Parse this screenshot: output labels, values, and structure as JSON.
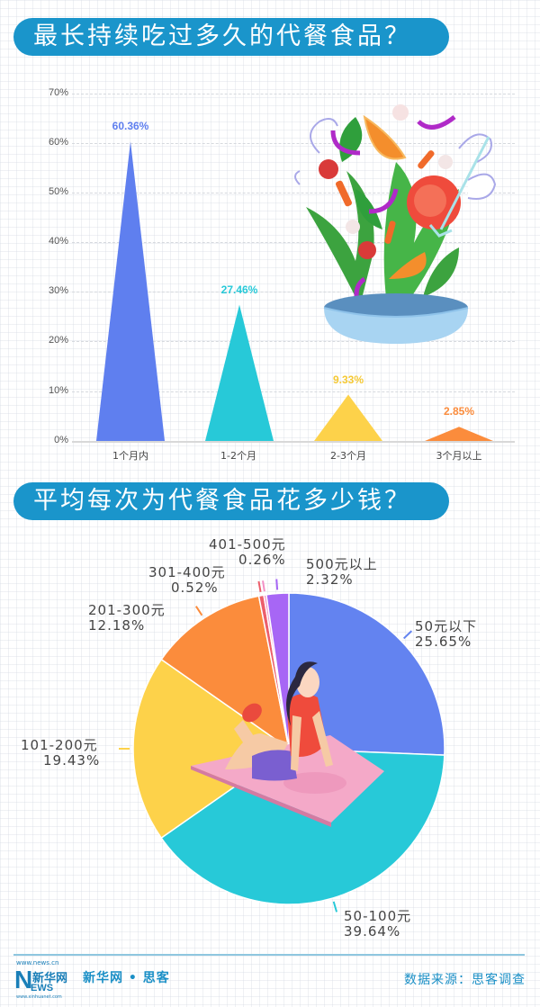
{
  "section1": {
    "title": "最长持续吃过多久的代餐食品？"
  },
  "section2": {
    "title": "平均每次为代餐食品花多少钱？"
  },
  "chart_data": [
    {
      "type": "bar",
      "shape": "triangle",
      "title": "最长持续吃过多久的代餐食品？",
      "categories": [
        "1个月内",
        "1-2个月",
        "2-3个月",
        "3个月以上"
      ],
      "values": [
        60.36,
        27.46,
        9.33,
        2.85
      ],
      "value_labels": [
        "60.36%",
        "27.46%",
        "9.33%",
        "2.85%"
      ],
      "colors": [
        "#5f7fef",
        "#27c9d8",
        "#fdd24a",
        "#fb8c3c"
      ],
      "xlabel": "",
      "ylabel": "",
      "ylim": [
        0,
        70
      ],
      "yticks": [
        "0%",
        "10%",
        "20%",
        "30%",
        "40%",
        "50%",
        "60%",
        "70%"
      ],
      "grid": true
    },
    {
      "type": "pie",
      "title": "平均每次为代餐食品花多少钱？",
      "categories": [
        "50元以下",
        "50-100元",
        "101-200元",
        "201-300元",
        "301-400元",
        "401-500元",
        "500元以上"
      ],
      "values": [
        25.65,
        39.64,
        19.43,
        12.18,
        0.52,
        0.26,
        2.32
      ],
      "value_labels": [
        "25.65%",
        "39.64%",
        "19.43%",
        "12.18%",
        "0.52%",
        "0.26%",
        "2.32%"
      ],
      "colors": [
        "#6383f0",
        "#27c9d8",
        "#fdd24a",
        "#fb8c3c",
        "#ec5e6a",
        "#f28fc4",
        "#a766f5"
      ],
      "legend": "outside labels with leader lines"
    }
  ],
  "footer": {
    "logo_url_top": "www.news.cn",
    "logo_n": "N",
    "logo_cn": "新华网",
    "logo_ews": "EWS",
    "logo_url_bottom": "www.xinhuanet.com",
    "brand": "新华网 • 思客",
    "source": "数据来源：思客调查"
  }
}
